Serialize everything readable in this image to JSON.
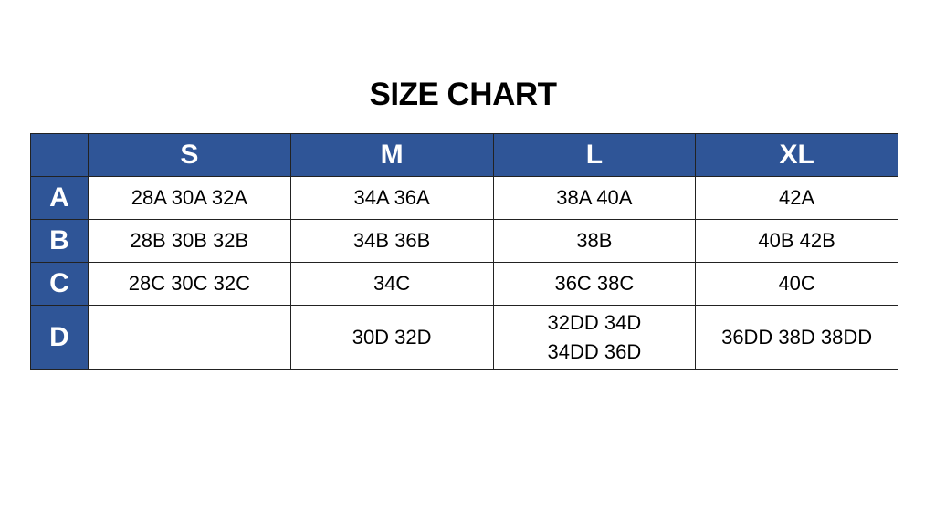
{
  "title": "SIZE CHART",
  "table": {
    "columns": [
      "",
      "S",
      "M",
      "L",
      "XL"
    ],
    "rows": [
      {
        "label": "A",
        "cells": [
          "28A 30A 32A",
          "34A 36A",
          "38A 40A",
          "42A"
        ]
      },
      {
        "label": "B",
        "cells": [
          "28B 30B 32B",
          "34B 36B",
          "38B",
          "40B 42B"
        ]
      },
      {
        "label": "C",
        "cells": [
          "28C 30C 32C",
          "34C",
          "36C 38C",
          "40C"
        ]
      },
      {
        "label": "D",
        "cells": [
          "",
          "30D 32D",
          "32DD 34D 34DD 36D",
          "36DD 38D 38DD"
        ]
      }
    ]
  },
  "colors": {
    "header_bg": "#2F5597",
    "header_text": "#FFFFFF"
  }
}
